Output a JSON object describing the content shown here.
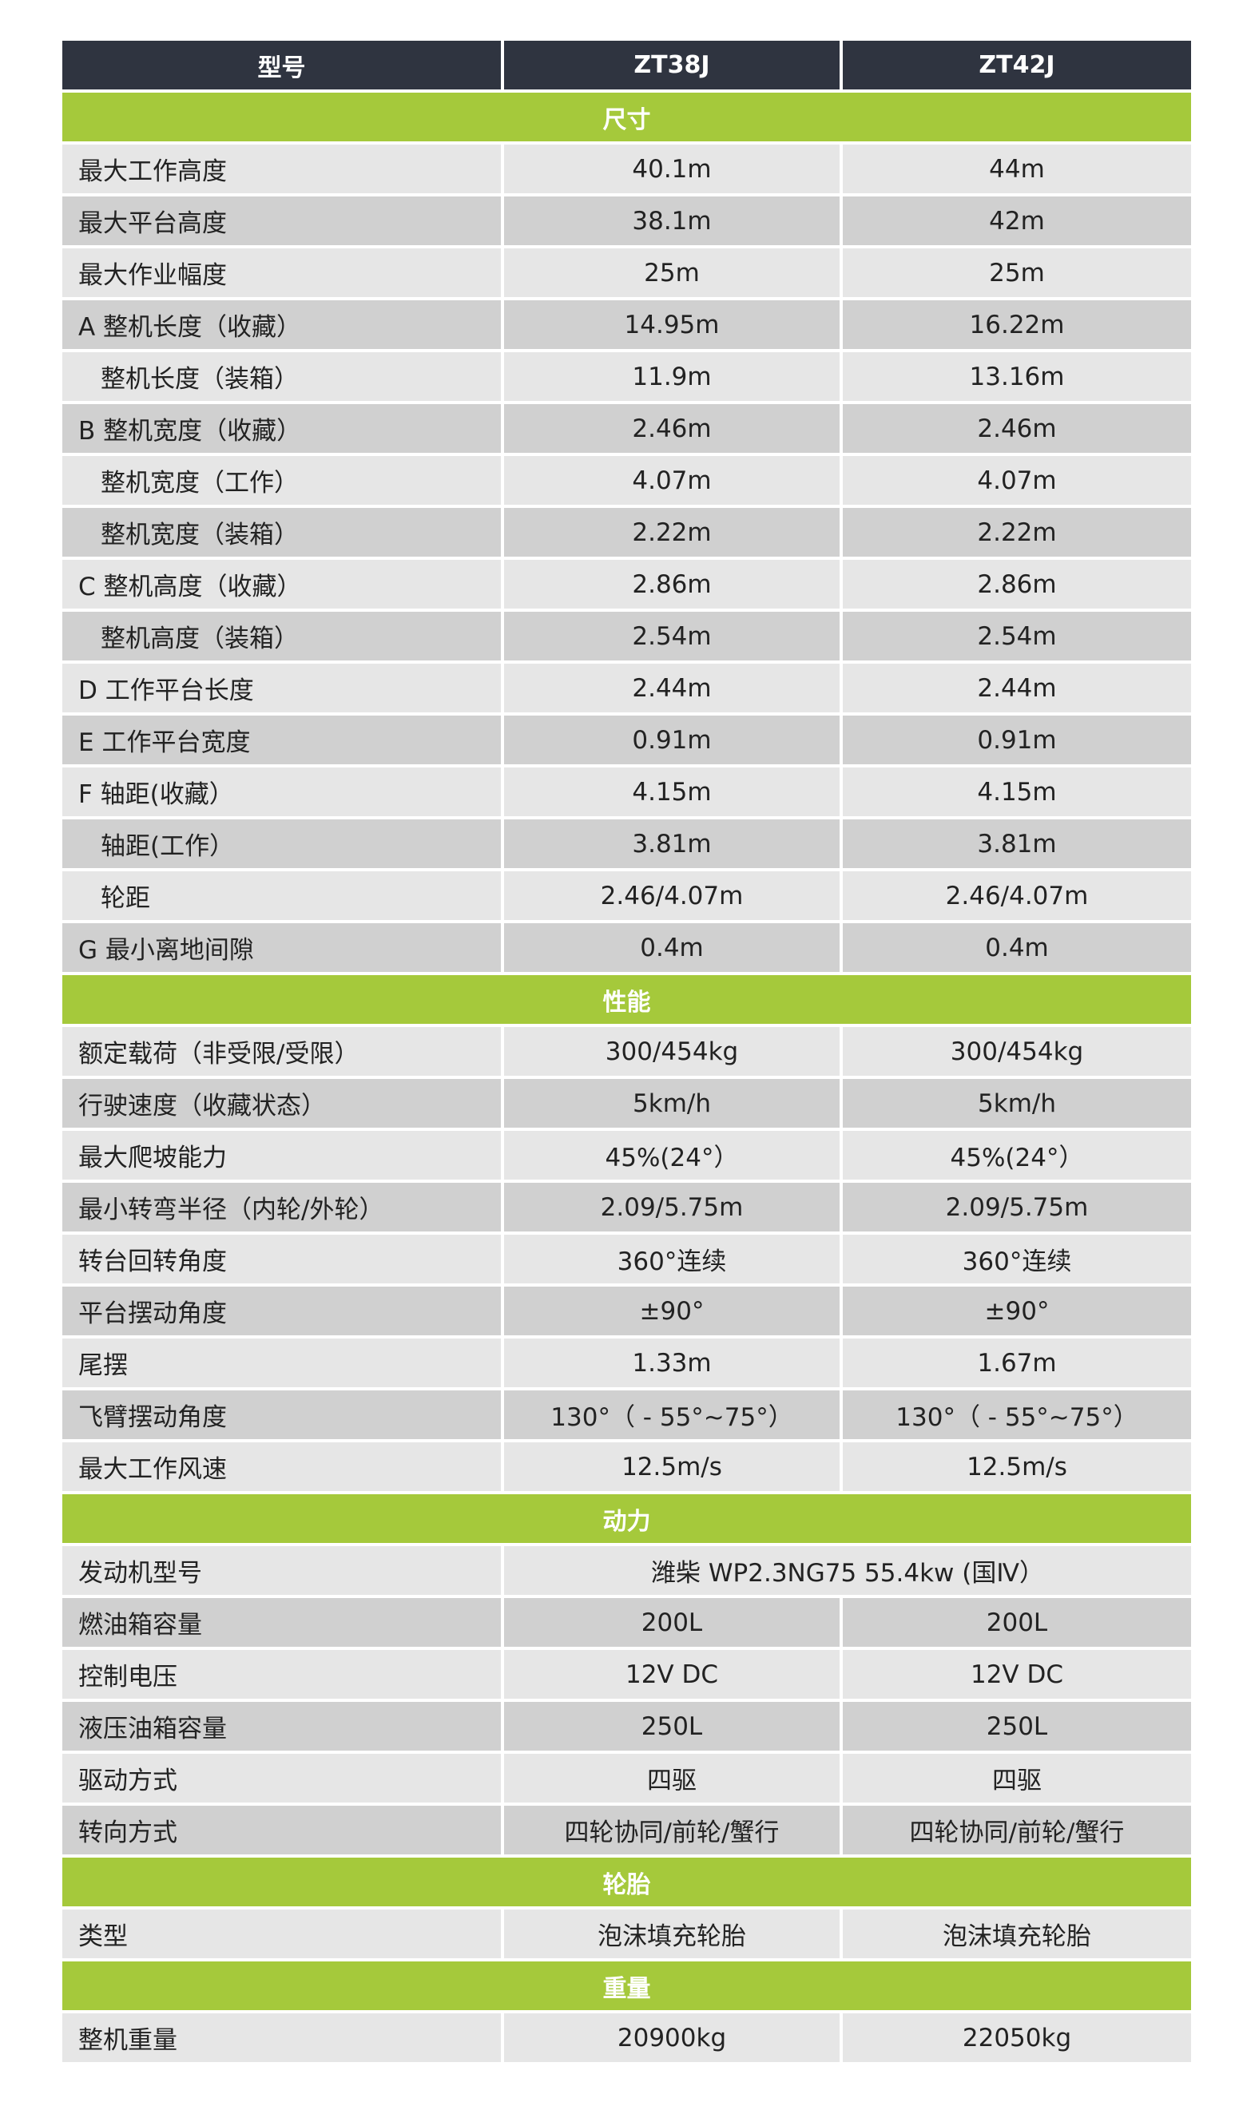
{
  "table": {
    "header": [
      "型号",
      "ZT38J",
      "ZT42J"
    ],
    "sections": [
      {
        "title": "尺寸",
        "rows": [
          [
            "最大工作高度",
            "40.1m",
            "44m"
          ],
          [
            "最大平台高度",
            "38.1m",
            "42m"
          ],
          [
            "最大作业幅度",
            "25m",
            "25m"
          ],
          [
            "A 整机长度（收藏）",
            "14.95m",
            "16.22m"
          ],
          [
            "整机长度（装箱）",
            "11.9m",
            "13.16m"
          ],
          [
            "B 整机宽度（收藏）",
            "2.46m",
            "2.46m"
          ],
          [
            "整机宽度（工作）",
            "4.07m",
            "4.07m"
          ],
          [
            "整机宽度（装箱）",
            "2.22m",
            "2.22m"
          ],
          [
            "C 整机高度（收藏）",
            "2.86m",
            "2.86m"
          ],
          [
            "整机高度（装箱）",
            "2.54m",
            "2.54m"
          ],
          [
            "D 工作平台长度",
            "2.44m",
            "2.44m"
          ],
          [
            "E 工作平台宽度",
            "0.91m",
            "0.91m"
          ],
          [
            "F 轴距(收藏）",
            "4.15m",
            "4.15m"
          ],
          [
            "轴距(工作）",
            "3.81m",
            "3.81m"
          ],
          [
            "轮距",
            "2.46/4.07m",
            "2.46/4.07m"
          ],
          [
            "G 最小离地间隙",
            "0.4m",
            "0.4m"
          ]
        ]
      },
      {
        "title": "性能",
        "rows": [
          [
            "额定载荷（非受限/受限）",
            "300/454kg",
            "300/454kg"
          ],
          [
            "行驶速度（收藏状态）",
            "5km/h",
            "5km/h"
          ],
          [
            "最大爬坡能力",
            "45%(24°）",
            "45%(24°）"
          ],
          [
            "最小转弯半径（内轮/外轮）",
            "2.09/5.75m",
            "2.09/5.75m"
          ],
          [
            "转台回转角度",
            "360°连续",
            "360°连续"
          ],
          [
            "平台摆动角度",
            "±90°",
            "±90°"
          ],
          [
            "尾摆",
            "1.33m",
            "1.67m"
          ],
          [
            "飞臂摆动角度",
            "130°（ - 55°~75°）",
            "130°（ - 55°~75°）"
          ],
          [
            "最大工作风速",
            "12.5m/s",
            "12.5m/s"
          ]
        ]
      },
      {
        "title": "动力",
        "rows": [
          [
            "发动机型号",
            "潍柴 WP2.3NG75 55.4kw (国Ⅳ）"
          ],
          [
            "燃油箱容量",
            "200L",
            "200L"
          ],
          [
            "控制电压",
            "12V DC",
            "12V DC"
          ],
          [
            "液压油箱容量",
            "250L",
            "250L"
          ],
          [
            "驱动方式",
            "四驱",
            "四驱"
          ],
          [
            "转向方式",
            "四轮协同/前轮/蟹行",
            "四轮协同/前轮/蟹行"
          ]
        ]
      },
      {
        "title": "轮胎",
        "rows": [
          [
            "类型",
            "泡沫填充轮胎",
            "泡沫填充轮胎"
          ]
        ]
      },
      {
        "title": "重量",
        "rows": [
          [
            "整机重量",
            "20900kg",
            "22050kg"
          ]
        ]
      }
    ]
  }
}
